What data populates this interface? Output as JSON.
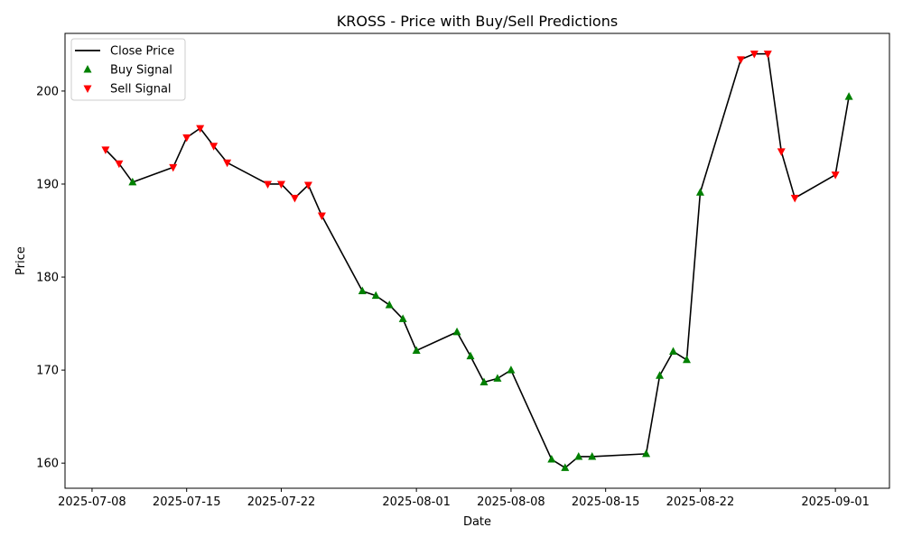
{
  "chart_data": {
    "type": "line",
    "title": "KROSS - Price with Buy/Sell Predictions",
    "xlabel": "Date",
    "ylabel": "Price",
    "xlim": [
      "2025-07-06",
      "2025-09-05"
    ],
    "ylim": [
      157.3,
      206.2
    ],
    "grid": false,
    "legend_position": "top-left",
    "x_ticks": [
      "2025-07-08",
      "2025-07-15",
      "2025-07-22",
      "2025-08-01",
      "2025-08-08",
      "2025-08-15",
      "2025-08-22",
      "2025-09-01"
    ],
    "y_ticks": [
      160,
      170,
      180,
      190,
      200
    ],
    "legend": [
      {
        "label": "Close Price",
        "kind": "line",
        "color": "#000000"
      },
      {
        "label": "Buy Signal",
        "kind": "triangle-up",
        "color": "#008000"
      },
      {
        "label": "Sell Signal",
        "kind": "triangle-down",
        "color": "#ff0000"
      }
    ],
    "series": [
      {
        "name": "Close Price",
        "color": "#000000",
        "points": [
          {
            "date": "2025-07-09",
            "value": 193.7,
            "signal": "sell"
          },
          {
            "date": "2025-07-10",
            "value": 192.2,
            "signal": "sell"
          },
          {
            "date": "2025-07-11",
            "value": 190.2,
            "signal": "buy"
          },
          {
            "date": "2025-07-14",
            "value": 191.8,
            "signal": "sell"
          },
          {
            "date": "2025-07-15",
            "value": 195.0,
            "signal": "sell"
          },
          {
            "date": "2025-07-16",
            "value": 196.0,
            "signal": "sell"
          },
          {
            "date": "2025-07-17",
            "value": 194.1,
            "signal": "sell"
          },
          {
            "date": "2025-07-18",
            "value": 192.3,
            "signal": "sell"
          },
          {
            "date": "2025-07-21",
            "value": 190.0,
            "signal": "sell"
          },
          {
            "date": "2025-07-22",
            "value": 190.0,
            "signal": "sell"
          },
          {
            "date": "2025-07-23",
            "value": 188.5,
            "signal": "sell"
          },
          {
            "date": "2025-07-24",
            "value": 189.9,
            "signal": "sell"
          },
          {
            "date": "2025-07-25",
            "value": 186.6,
            "signal": "sell"
          },
          {
            "date": "2025-07-28",
            "value": 178.5,
            "signal": "buy"
          },
          {
            "date": "2025-07-29",
            "value": 178.0,
            "signal": "buy"
          },
          {
            "date": "2025-07-30",
            "value": 177.0,
            "signal": "buy"
          },
          {
            "date": "2025-07-31",
            "value": 175.5,
            "signal": "buy"
          },
          {
            "date": "2025-08-01",
            "value": 172.1,
            "signal": "buy"
          },
          {
            "date": "2025-08-04",
            "value": 174.1,
            "signal": "buy"
          },
          {
            "date": "2025-08-05",
            "value": 171.5,
            "signal": "buy"
          },
          {
            "date": "2025-08-06",
            "value": 168.7,
            "signal": "buy"
          },
          {
            "date": "2025-08-07",
            "value": 169.1,
            "signal": "buy"
          },
          {
            "date": "2025-08-08",
            "value": 170.0,
            "signal": "buy"
          },
          {
            "date": "2025-08-11",
            "value": 160.4,
            "signal": "buy"
          },
          {
            "date": "2025-08-12",
            "value": 159.5,
            "signal": "buy"
          },
          {
            "date": "2025-08-13",
            "value": 160.7,
            "signal": "buy"
          },
          {
            "date": "2025-08-14",
            "value": 160.7,
            "signal": "buy"
          },
          {
            "date": "2025-08-18",
            "value": 161.0,
            "signal": "buy"
          },
          {
            "date": "2025-08-19",
            "value": 169.4,
            "signal": "buy"
          },
          {
            "date": "2025-08-20",
            "value": 172.0,
            "signal": "buy"
          },
          {
            "date": "2025-08-21",
            "value": 171.1,
            "signal": "buy"
          },
          {
            "date": "2025-08-22",
            "value": 189.1,
            "signal": "buy"
          },
          {
            "date": "2025-08-25",
            "value": 203.4,
            "signal": "sell"
          },
          {
            "date": "2025-08-26",
            "value": 204.0,
            "signal": "sell"
          },
          {
            "date": "2025-08-27",
            "value": 204.0,
            "signal": "sell"
          },
          {
            "date": "2025-08-28",
            "value": 193.5,
            "signal": "sell"
          },
          {
            "date": "2025-08-29",
            "value": 188.5,
            "signal": "sell"
          },
          {
            "date": "2025-09-01",
            "value": 191.0,
            "signal": "sell"
          },
          {
            "date": "2025-09-02",
            "value": 199.4,
            "signal": "buy"
          }
        ]
      }
    ]
  }
}
